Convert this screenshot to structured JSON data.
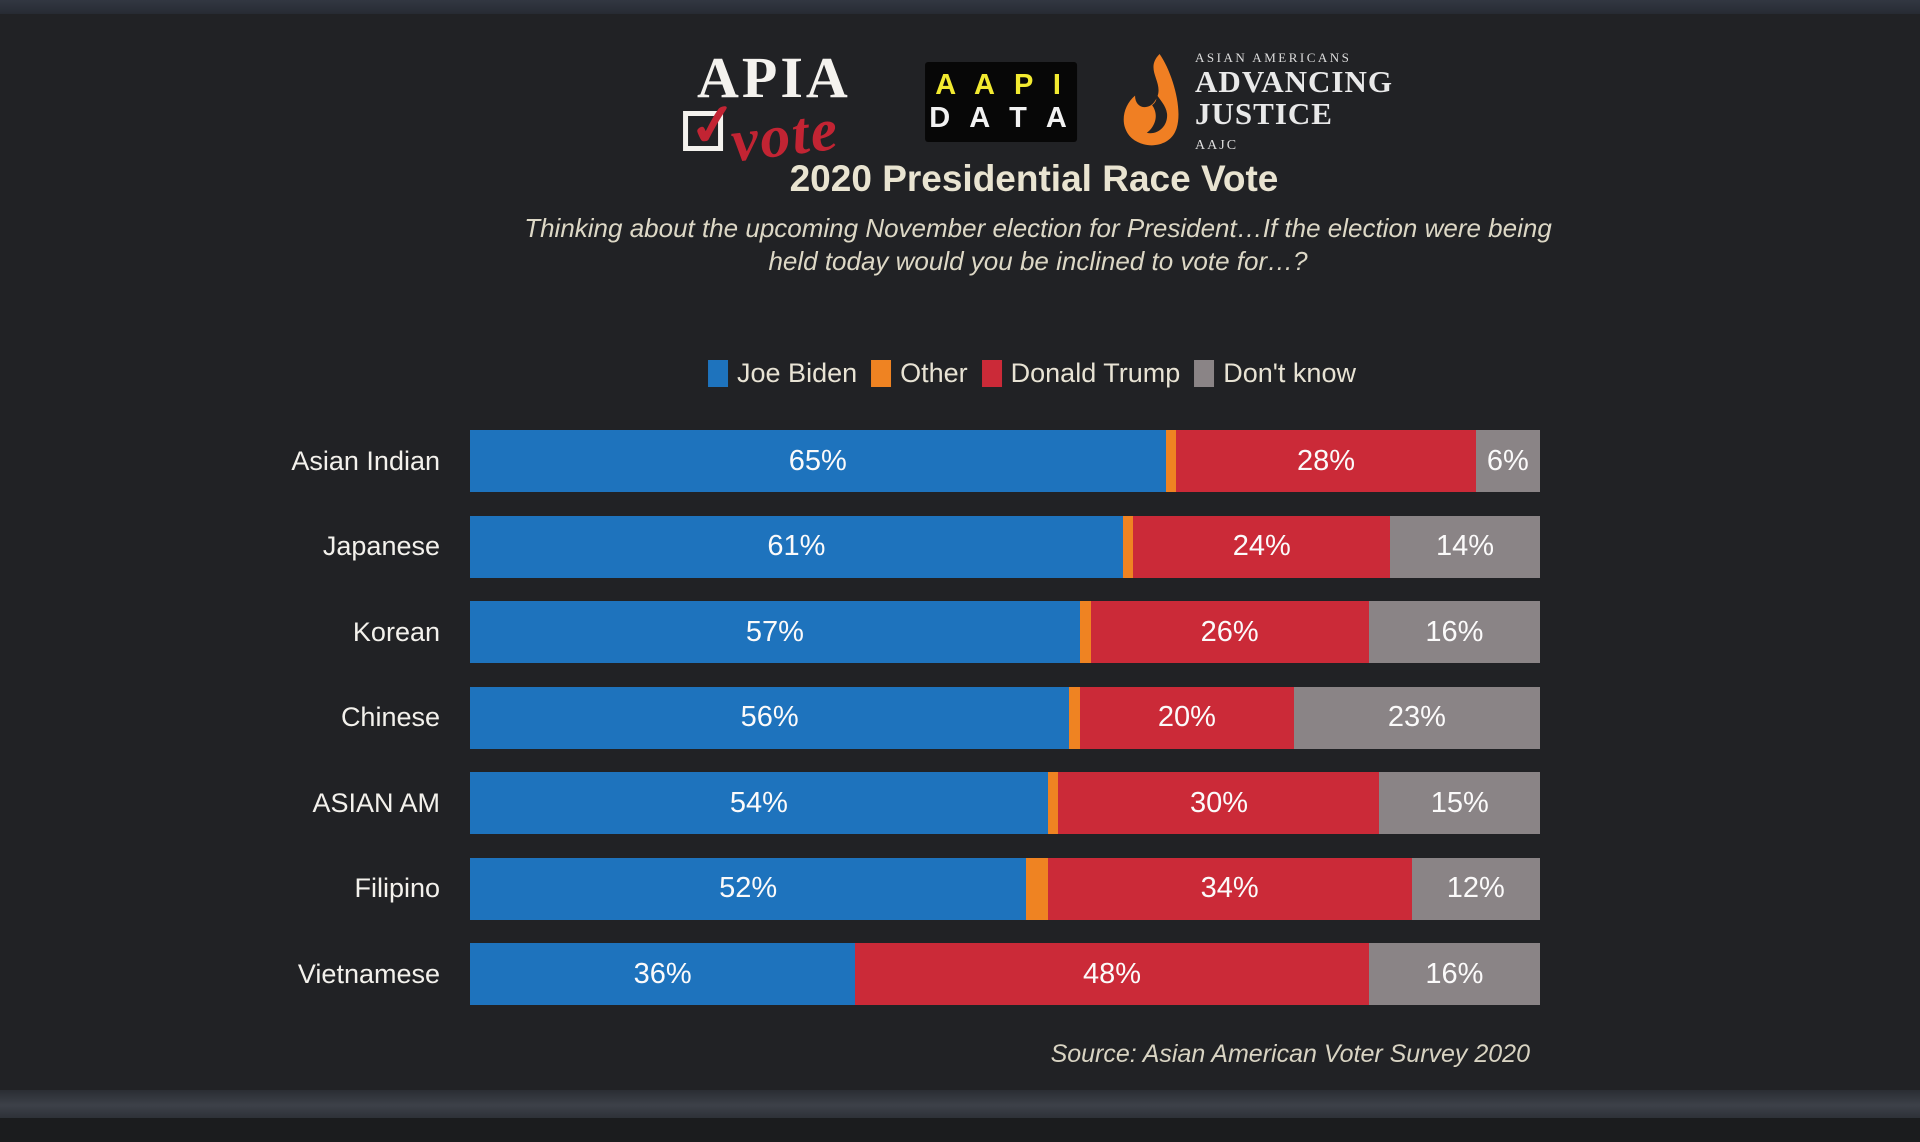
{
  "page": {
    "title": "2020 Presidential Race Vote",
    "subtitle_line1": "Thinking about the upcoming November election for President…If the election were being",
    "subtitle_line2": "held today would you be inclined to vote for…?",
    "source": "Source: Asian American Voter Survey 2020"
  },
  "logos": {
    "apiavote": {
      "word": "APIA",
      "script": "vote",
      "check": "✓"
    },
    "aapidata": {
      "line1": "A A P I",
      "line2": "D A T A"
    },
    "advancing_justice": {
      "eyebrow": "ASIAN AMERICANS",
      "line1": "ADVANCING",
      "line2": "JUSTICE",
      "sub": "AAJC"
    }
  },
  "chart_data": {
    "type": "bar",
    "orientation": "horizontal",
    "stacked": true,
    "unit": "%",
    "title": "2020 Presidential Race Vote",
    "xlim": [
      0,
      100
    ],
    "grid": false,
    "legend_position": "top-center",
    "categories": [
      "Asian Indian",
      "Japanese",
      "Korean",
      "Chinese",
      "ASIAN AM",
      "Filipino",
      "Vietnamese"
    ],
    "series": [
      {
        "key": "joe-biden",
        "name": "Joe Biden",
        "color": "#1e73bd",
        "show_labels": true,
        "values": [
          65,
          61,
          57,
          56,
          54,
          52,
          36
        ]
      },
      {
        "key": "other",
        "name": "Other",
        "color": "#ef8322",
        "show_labels": false,
        "values": [
          1,
          1,
          1,
          1,
          1,
          2,
          0
        ]
      },
      {
        "key": "donald-trump",
        "name": "Donald Trump",
        "color": "#cb2a38",
        "show_labels": true,
        "values": [
          28,
          24,
          26,
          20,
          30,
          34,
          48
        ]
      },
      {
        "key": "dont-know",
        "name": "Don't know",
        "color": "#8a8486",
        "show_labels": true,
        "values": [
          6,
          14,
          16,
          23,
          15,
          12,
          16
        ]
      }
    ]
  }
}
